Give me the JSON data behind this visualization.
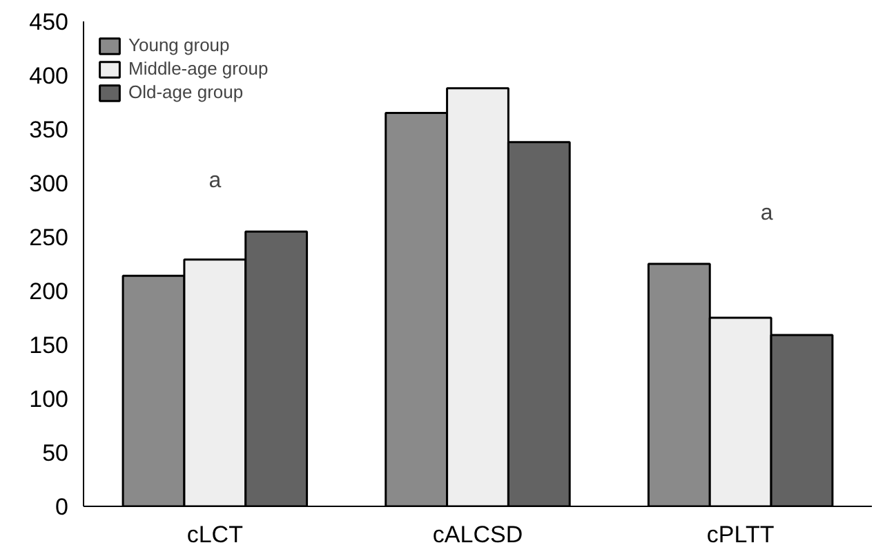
{
  "chart_data": {
    "type": "bar",
    "categories": [
      "cLCT",
      "cALCSD",
      "cPLTT"
    ],
    "series": [
      {
        "name": "Young group",
        "color": "#8a8a8a",
        "values": [
          214,
          365,
          225
        ]
      },
      {
        "name": "Middle-age group",
        "color": "#eeeeee",
        "values": [
          229,
          388,
          175
        ]
      },
      {
        "name": "Old-age group",
        "color": "#636363",
        "values": [
          255,
          338,
          159
        ]
      }
    ],
    "ylim": [
      0,
      450
    ],
    "yticks": [
      0,
      50,
      100,
      150,
      200,
      250,
      300,
      350,
      400,
      450
    ],
    "annotations": [
      "a",
      "a"
    ],
    "grid": false,
    "legend": "top left"
  }
}
